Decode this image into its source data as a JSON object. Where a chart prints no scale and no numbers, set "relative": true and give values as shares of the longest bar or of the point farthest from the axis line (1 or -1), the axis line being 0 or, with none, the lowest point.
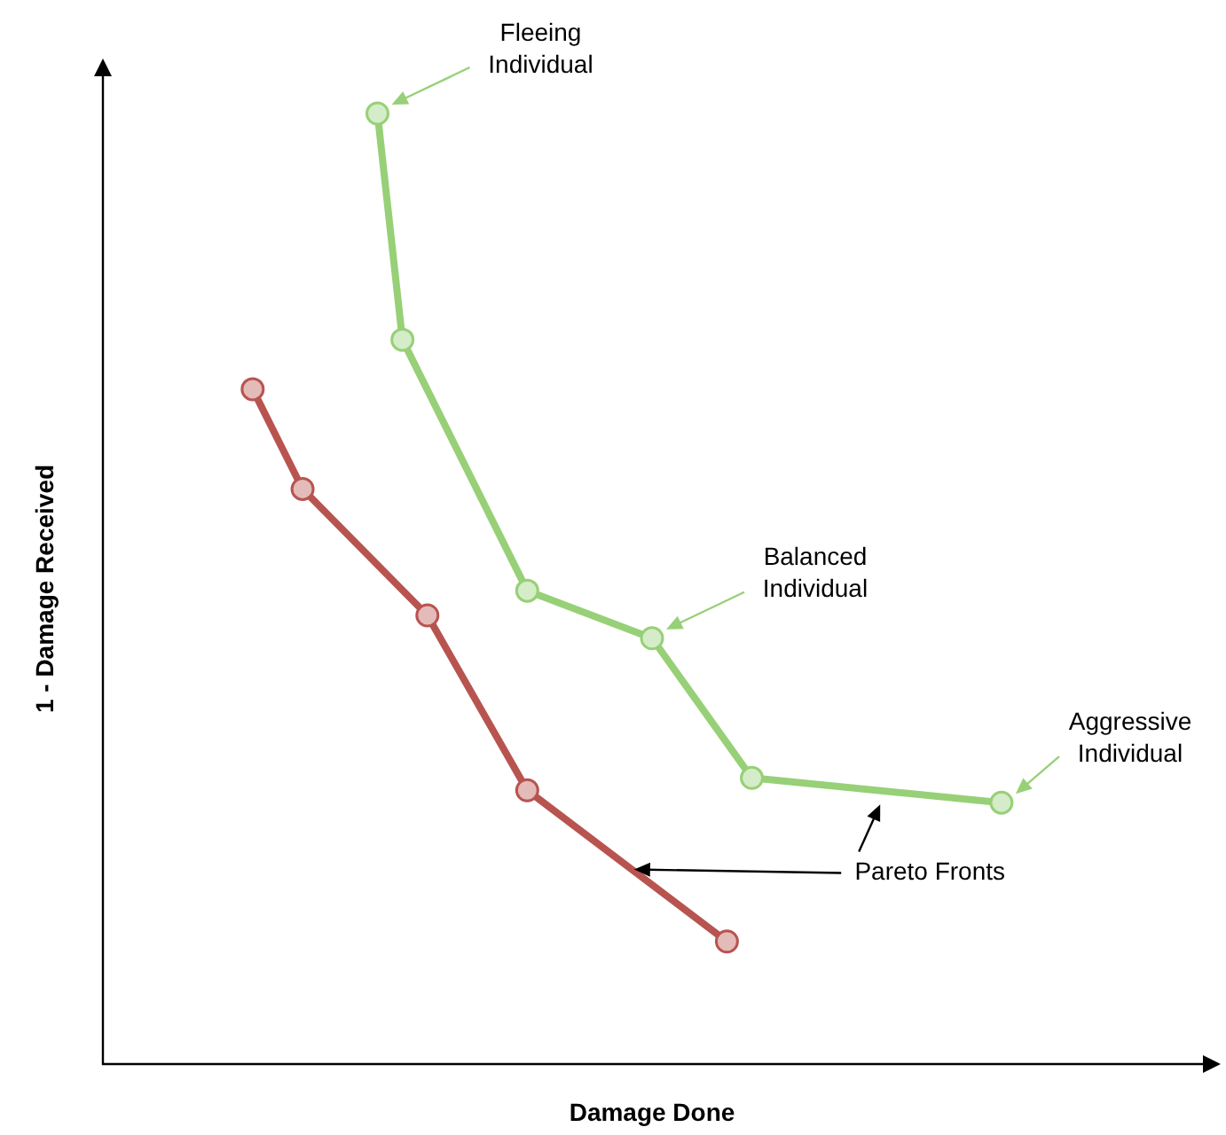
{
  "chart_data": {
    "type": "line",
    "relative": true,
    "xlabel": "Damage Done",
    "ylabel": "1 - Damage Received",
    "marker": "circle",
    "categories": [
      null,
      null,
      null,
      null,
      null,
      null,
      null,
      null,
      null,
      null,
      null,
      null,
      null,
      null,
      null,
      null,
      null,
      null,
      null,
      null,
      null,
      null,
      null,
      null,
      null,
      null,
      null,
      null,
      null,
      null,
      null,
      null,
      null,
      null,
      null,
      null,
      null,
      null,
      null,
      null,
      null,
      null,
      null,
      null,
      null
    ],
    "series": [
      {
        "color": "#97d077",
        "values": [
          null,
          null,
          null,
          null,
          null,
          null,
          null,
          null,
          null,
          null,
          null,
          1,
          0.762,
          null,
          null,
          null,
          null,
          0.498,
          null,
          null,
          null,
          null,
          0.448,
          null,
          null,
          null,
          0.301,
          null,
          null,
          null,
          null,
          null,
          null,
          null,
          null,
          null,
          0.275,
          null,
          null,
          null,
          null,
          null,
          null,
          null,
          null
        ]
      },
      {
        "color": "#b85450",
        "values": [
          null,
          null,
          null,
          null,
          null,
          null,
          0.71,
          null,
          0.605,
          null,
          null,
          null,
          null,
          0.472,
          null,
          null,
          null,
          0.288,
          null,
          null,
          null,
          null,
          null,
          null,
          null,
          0.129,
          null,
          null,
          null,
          null,
          null,
          null,
          null,
          null,
          null,
          null,
          null,
          null,
          null,
          null,
          null,
          null,
          null,
          null,
          null
        ]
      }
    ],
    "annotations": [
      "Fleeing Individual",
      "Balanced Individual",
      "Aggressive Individual",
      "Pareto Fronts"
    ]
  }
}
